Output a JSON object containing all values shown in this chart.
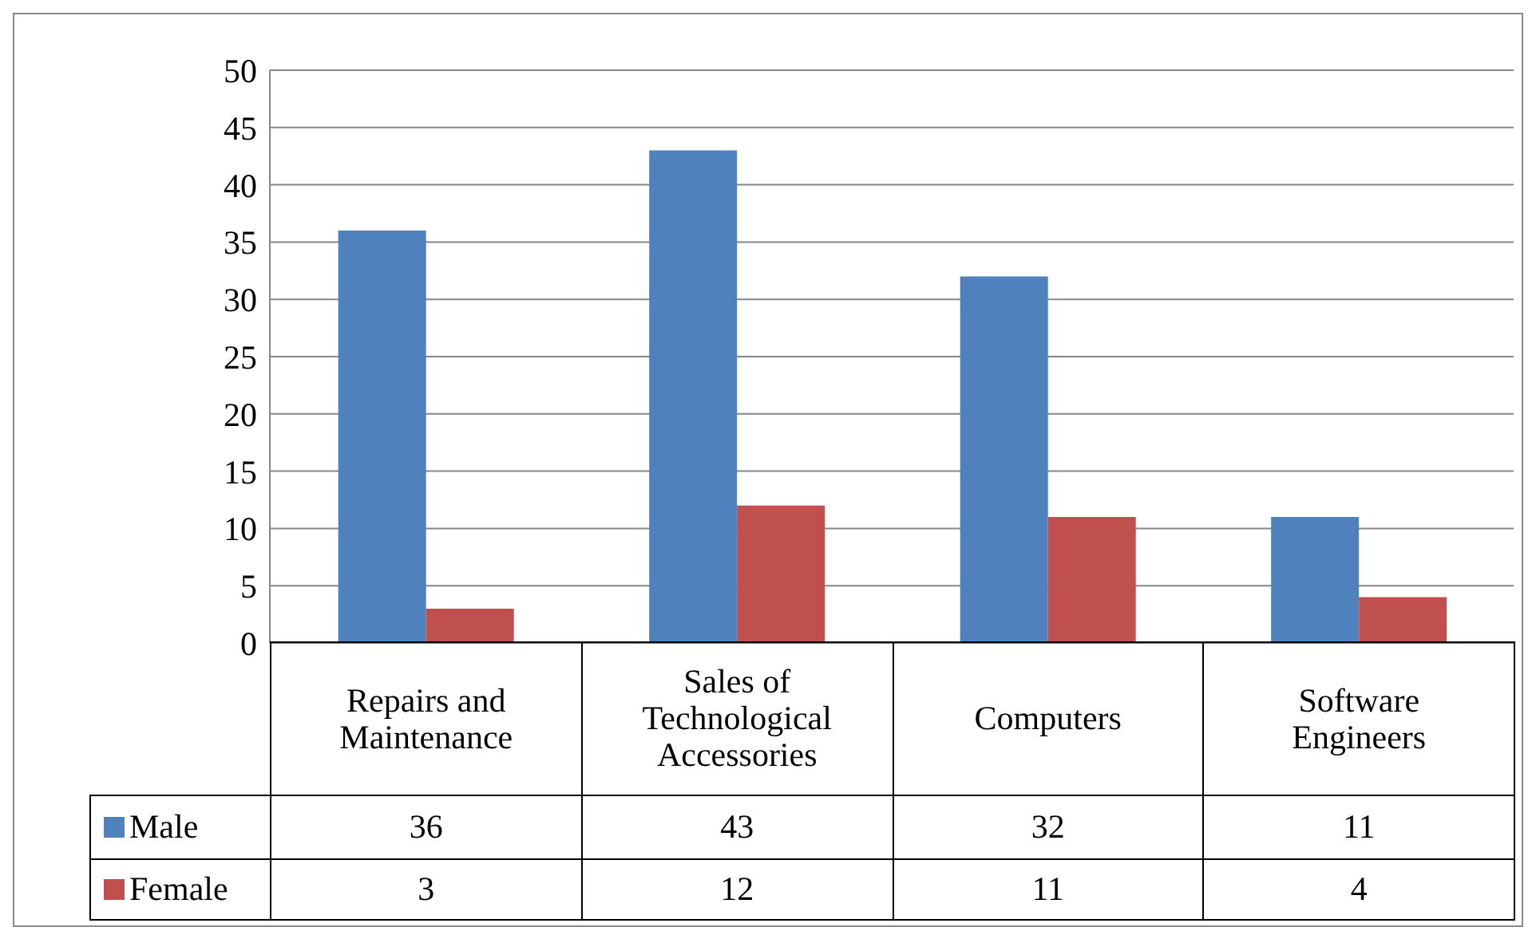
{
  "chart_data": {
    "type": "bar",
    "categories": [
      "Repairs and Maintenance",
      "Sales of Technological Accessories",
      "Computers",
      "Software Engineers"
    ],
    "series": [
      {
        "name": "Male",
        "color": "#4f81bd",
        "values": [
          36,
          43,
          32,
          11
        ]
      },
      {
        "name": "Female",
        "color": "#c0504d",
        "values": [
          3,
          12,
          11,
          4
        ]
      }
    ],
    "ylim": [
      0,
      50
    ],
    "yticks": [
      0,
      5,
      10,
      15,
      20,
      25,
      30,
      35,
      40,
      45,
      50
    ],
    "grid": "y",
    "legend": "bottom",
    "data_labels": true
  }
}
